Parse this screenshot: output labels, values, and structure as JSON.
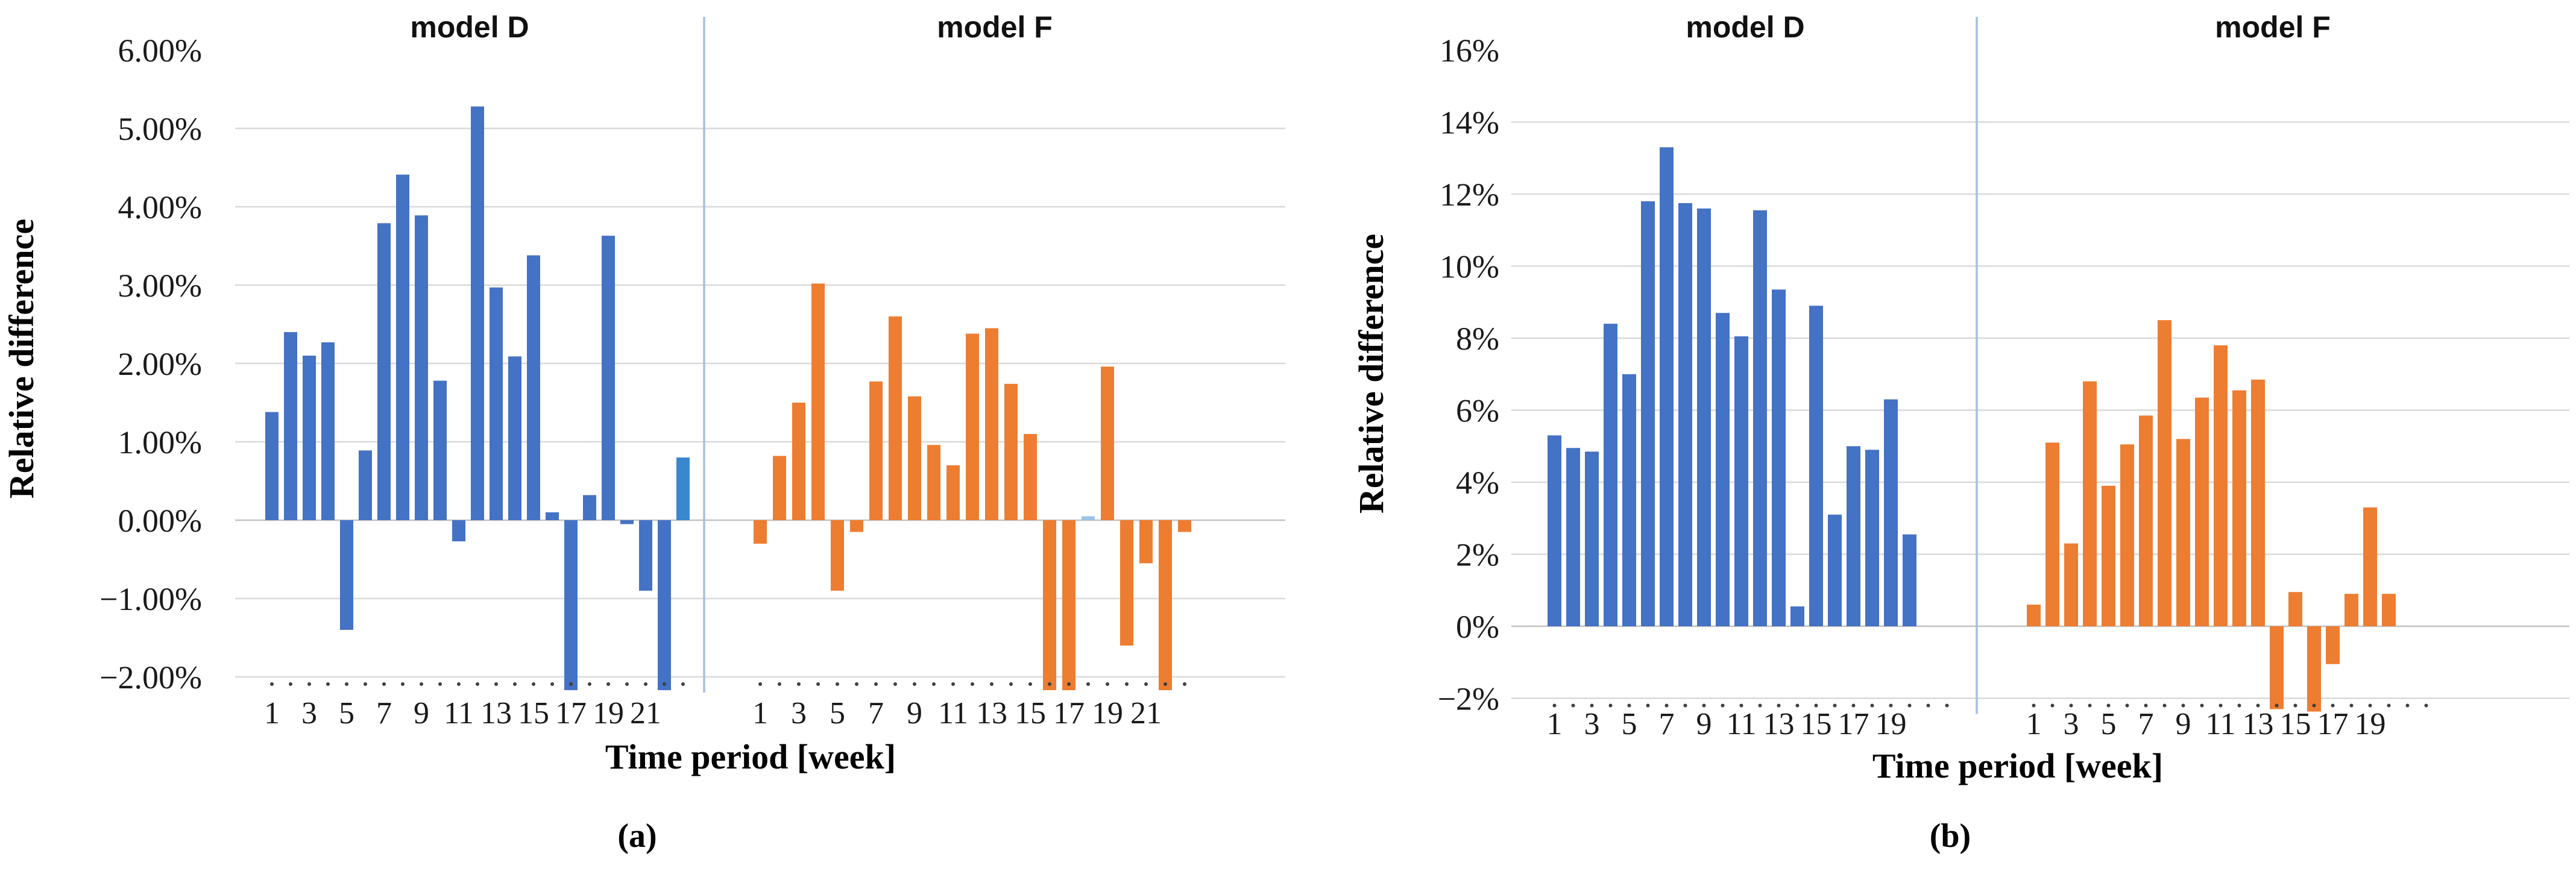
{
  "figure": {
    "background": "#ffffff",
    "accent_colors": {
      "model_d_blue": "#4472C4",
      "model_f_orange": "#ED7D31",
      "last_bar_blue_variant": "#3A87CE",
      "tiny_bar_light_blue": "#9DC3E6",
      "panel_divider_blue": "#A6BFE0",
      "gridline_gray": "#D9D9D9",
      "zero_line_gray": "#C2C2C2",
      "tick_dot_color": "#3f3f3f"
    }
  },
  "chart_data": [
    {
      "id": "a",
      "type": "bar",
      "caption": "(a)",
      "ylabel": "Relative difference",
      "xlabel": "Time period [week]",
      "layout_hint": "two side-by-side panels sharing one y-axis, separated by a thin light-blue vertical divider; grid on; no legend; bars below the y-axis minimum are clipped at the plot bottom",
      "ylim": [
        -2,
        6
      ],
      "ytick_step": 1,
      "ytick_labels": [
        "6.00%",
        "5.00%",
        "4.00%",
        "3.00%",
        "2.00%",
        "1.00%",
        "0.00%",
        "−1.00%",
        "−2.00%"
      ],
      "xtick_labels": [
        "1",
        "3",
        "5",
        "7",
        "9",
        "11",
        "13",
        "15",
        "17",
        "19",
        "21"
      ],
      "weeks": [
        1,
        2,
        3,
        4,
        5,
        6,
        7,
        8,
        9,
        10,
        11,
        12,
        13,
        14,
        15,
        16,
        17,
        18,
        19,
        20,
        21,
        22,
        23
      ],
      "series": [
        {
          "name": "model D",
          "color": "#4472C4",
          "values": [
            1.38,
            2.4,
            2.1,
            2.27,
            -1.4,
            0.89,
            3.79,
            4.41,
            3.89,
            1.78,
            -0.27,
            5.28,
            2.97,
            2.09,
            3.38,
            0.1,
            -2.3,
            0.32,
            3.63,
            -0.05,
            -0.9,
            -2.3,
            0.8
          ],
          "clipped_below_axis_weeks": [
            17,
            22
          ],
          "color_overrides": {
            "23": "#3A87CE"
          }
        },
        {
          "name": "model F",
          "color": "#ED7D31",
          "values": [
            -0.3,
            0.82,
            1.5,
            3.02,
            -0.9,
            -0.15,
            1.77,
            2.6,
            1.58,
            0.96,
            0.7,
            2.38,
            2.45,
            1.74,
            1.1,
            -2.3,
            -2.35,
            0.05,
            1.96,
            -1.6,
            -0.55,
            -2.35,
            -0.15
          ],
          "clipped_below_axis_weeks": [
            16,
            17,
            22
          ],
          "color_overrides": {
            "18": "#9DC3E6"
          }
        }
      ]
    },
    {
      "id": "b",
      "type": "bar",
      "caption": "(b)",
      "ylabel": "Relative difference",
      "xlabel": "Time period [week]",
      "layout_hint": "two side-by-side panels sharing one y-axis, separated by a thin light-blue vertical divider; grid on; no legend; bars below the y-axis minimum are clipped at the plot bottom",
      "ylim": [
        -2,
        16
      ],
      "ytick_step": 2,
      "ytick_labels": [
        "16%",
        "14%",
        "12%",
        "10%",
        "8%",
        "6%",
        "4%",
        "2%",
        "0%",
        "−2%"
      ],
      "xtick_labels": [
        "1",
        "3",
        "5",
        "7",
        "9",
        "11",
        "13",
        "15",
        "17",
        "19"
      ],
      "weeks": [
        1,
        2,
        3,
        4,
        5,
        6,
        7,
        8,
        9,
        10,
        11,
        12,
        13,
        14,
        15,
        16,
        17,
        18,
        19,
        20
      ],
      "series": [
        {
          "name": "model D",
          "color": "#4472C4",
          "values": [
            5.3,
            4.95,
            4.85,
            8.4,
            7.0,
            11.8,
            13.3,
            11.75,
            11.6,
            8.7,
            8.05,
            11.55,
            9.35,
            0.55,
            8.9,
            3.1,
            5.0,
            4.9,
            6.3,
            2.55
          ],
          "clipped_below_axis_weeks": [],
          "color_overrides": {}
        },
        {
          "name": "model F",
          "color": "#ED7D31",
          "values": [
            0.6,
            5.1,
            2.3,
            6.8,
            3.9,
            5.05,
            5.85,
            8.5,
            5.2,
            6.35,
            7.8,
            6.55,
            6.85,
            -2.3,
            0.95,
            -2.4,
            -1.05,
            0.9,
            3.3,
            0.9
          ],
          "clipped_below_axis_weeks": [
            14,
            16
          ],
          "color_overrides": {}
        }
      ]
    }
  ]
}
